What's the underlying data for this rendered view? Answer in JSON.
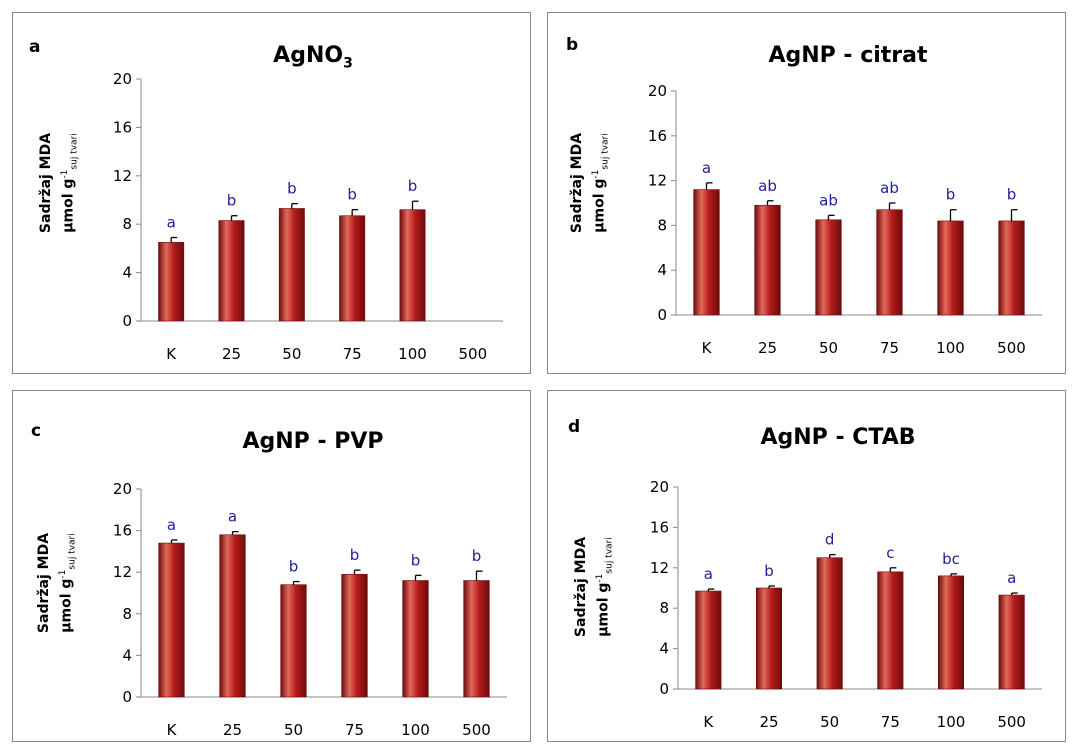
{
  "ylabel": {
    "line1": "Sadržaj MDA",
    "unit_base": "µmol g",
    "unit_exp": "-1",
    "unit_sub": "suj tvari"
  },
  "colors": {
    "bar": "#b31b1b",
    "bar_dark": "#6d0c0c",
    "bar_light": "#e36a5c",
    "sig": "#1f1f9a",
    "axis": "#888888"
  },
  "chart_data": [
    {
      "panel": "a",
      "title_main": "AgNO",
      "title_sub": "3",
      "type": "bar",
      "categories": [
        "K",
        "25",
        "50",
        "75",
        "100",
        "500"
      ],
      "values": [
        6.5,
        8.3,
        9.3,
        8.7,
        9.2,
        null
      ],
      "errors": [
        0.4,
        0.4,
        0.4,
        0.5,
        0.7,
        null
      ],
      "sig_labels": [
        "a",
        "b",
        "b",
        "b",
        "b",
        ""
      ],
      "ylim": [
        0,
        20
      ],
      "yticks": [
        0,
        4,
        8,
        12,
        16,
        20
      ]
    },
    {
      "panel": "b",
      "title_main": "AgNP - citrat",
      "title_sub": "",
      "type": "bar",
      "categories": [
        "K",
        "25",
        "50",
        "75",
        "100",
        "500"
      ],
      "values": [
        11.2,
        9.8,
        8.5,
        9.4,
        8.4,
        8.4
      ],
      "errors": [
        0.6,
        0.4,
        0.4,
        0.6,
        1.0,
        1.0
      ],
      "sig_labels": [
        "a",
        "ab",
        "ab",
        "ab",
        "b",
        "b"
      ],
      "ylim": [
        0,
        20
      ],
      "yticks": [
        0,
        4,
        8,
        12,
        16,
        20
      ]
    },
    {
      "panel": "c",
      "title_main": "AgNP - PVP",
      "title_sub": "",
      "type": "bar",
      "categories": [
        "K",
        "25",
        "50",
        "75",
        "100",
        "500"
      ],
      "values": [
        14.8,
        15.6,
        10.8,
        11.8,
        11.2,
        11.2
      ],
      "errors": [
        0.3,
        0.3,
        0.3,
        0.4,
        0.5,
        0.9
      ],
      "sig_labels": [
        "a",
        "a",
        "b",
        "b",
        "b",
        "b"
      ],
      "ylim": [
        0,
        20
      ],
      "yticks": [
        0,
        4,
        8,
        12,
        16,
        20
      ]
    },
    {
      "panel": "d",
      "title_main": "AgNP - CTAB",
      "title_sub": "",
      "type": "bar",
      "categories": [
        "K",
        "25",
        "50",
        "75",
        "100",
        "500"
      ],
      "values": [
        9.7,
        10.0,
        13.0,
        11.6,
        11.2,
        9.3
      ],
      "errors": [
        0.2,
        0.2,
        0.3,
        0.4,
        0.2,
        0.2
      ],
      "sig_labels": [
        "a",
        "b",
        "d",
        "c",
        "bc",
        "a"
      ],
      "ylim": [
        0,
        20
      ],
      "yticks": [
        0,
        4,
        8,
        12,
        16,
        20
      ]
    }
  ]
}
